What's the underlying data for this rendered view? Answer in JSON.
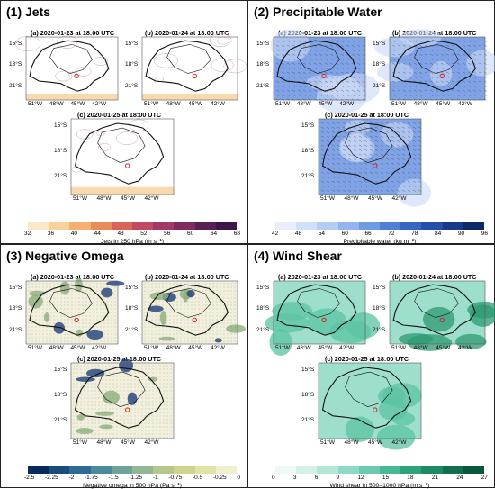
{
  "quadrants": [
    {
      "title": "(1) Jets",
      "panels": [
        "(a) 2020-01-23 at 18:00 UTC",
        "(b) 2020-01-24 at 18:00 UTC",
        "(c) 2020-01-25 at 18:00 UTC"
      ],
      "colorbar": {
        "ticks": [
          "32",
          "36",
          "40",
          "44",
          "48",
          "52",
          "56",
          "60",
          "64",
          "68"
        ],
        "label": "Jets in 250 hPa (m s⁻¹)",
        "colors": [
          "#fbe7c6",
          "#f8d29a",
          "#f3b06e",
          "#ea8b5a",
          "#d9645a",
          "#c14a60",
          "#a23a64",
          "#7f2b61",
          "#5a1f55",
          "#3c1747"
        ]
      }
    },
    {
      "title": "(2) Precipitable Water",
      "panels": [
        "(a) 2020-01-23 at 18:00 UTC",
        "(b) 2020-01-24 at 18:00 UTC",
        "(c) 2020-01-25 at 18:00 UTC"
      ],
      "colorbar": {
        "ticks": [
          "42",
          "48",
          "54",
          "60",
          "66",
          "72",
          "78",
          "84",
          "90",
          "96"
        ],
        "label": "Precipitable water (kg m⁻²)",
        "colors": [
          "#e7efff",
          "#d1e0fb",
          "#b4cdf5",
          "#92b5ee",
          "#6f9be3",
          "#4f80d6",
          "#3566c4",
          "#234fa8",
          "#163a88",
          "#0c2866"
        ]
      }
    },
    {
      "title": "(3) Negative Omega",
      "panels": [
        "(a) 2020-01-23 at 18:00 UTC",
        "(b) 2020-01-24 at 18:00 UTC",
        "(c) 2020-01-25 at 18:00 UTC"
      ],
      "colorbar": {
        "ticks": [
          "-2.5",
          "-2.25",
          "-2",
          "-1.75",
          "-1.5",
          "-1.25",
          "-1",
          "-0.75",
          "-0.5",
          "-0.25",
          "0"
        ],
        "label": "Negative omega in 500 hPa (Pa s⁻¹)",
        "colors": [
          "#0b2a5c",
          "#1b4a7e",
          "#2f6a93",
          "#4a8a9c",
          "#6fa39b",
          "#93b793",
          "#b5c78c",
          "#cfd58f",
          "#e2e1a6",
          "#f1efd0"
        ]
      }
    },
    {
      "title": "(4) Wind Shear",
      "panels": [
        "(a) 2020-01-23 at 18:00 UTC",
        "(b) 2020-01-24 at 18:00 UTC",
        "(c) 2020-01-25 at 18:00 UTC"
      ],
      "colorbar": {
        "ticks": [
          "0",
          "3",
          "6",
          "9",
          "12",
          "15",
          "18",
          "21",
          "24",
          "27"
        ],
        "label": "Wind shear in 500–1000 hPa (m s⁻¹)",
        "colors": [
          "#eef9f6",
          "#d4f1e8",
          "#b4e7d8",
          "#8fdac6",
          "#6bcbb0",
          "#48b996",
          "#2ea27c",
          "#1d8a64",
          "#126f4e",
          "#0a573c"
        ]
      }
    }
  ],
  "lat_labels": [
    "15°S",
    "18°S",
    "21°S"
  ],
  "lon_labels": [
    "51°W",
    "48°W",
    "45°W",
    "42°W"
  ]
}
